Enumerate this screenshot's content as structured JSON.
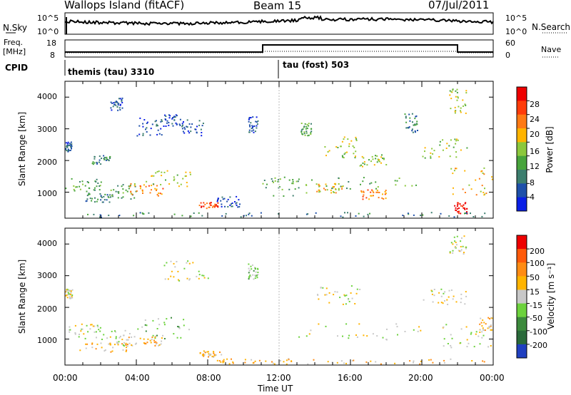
{
  "header": {
    "station": "Wallops Island (fitACF)",
    "beam": "Beam 15",
    "date": "07/Jul/2011"
  },
  "top_panels": {
    "nsky_label": "N.Sky",
    "nsky_ticks": [
      "10^5",
      "10^0"
    ],
    "nsearch_label": "N.Search",
    "nsearch_ticks": [
      "10^5",
      "10^0"
    ],
    "freq_label": "Freq.",
    "freq_unit": "[MHz]",
    "freq_ticks": [
      "18",
      "8"
    ],
    "nave_label": "Nave",
    "nave_ticks": [
      "60",
      "0"
    ],
    "cpid_label": "CPID",
    "cpid_entries": [
      {
        "label": "themis (tau) 3310",
        "start_hour": 0
      },
      {
        "label": "tau (fost) 503",
        "start_hour": 12
      }
    ]
  },
  "chart_data": [
    {
      "type": "heatmap",
      "title": "",
      "quantity": "Power",
      "xlabel": "Time UT",
      "ylabel": "Slant Range [km]",
      "xlim": [
        0,
        24
      ],
      "ylim": [
        180,
        4500
      ],
      "x_ticks": [
        "00:00",
        "04:00",
        "08:00",
        "12:00",
        "16:00",
        "20:00",
        "00:00"
      ],
      "y_ticks": [
        1000,
        2000,
        3000,
        4000
      ],
      "colorbar": {
        "label": "Power [dB]",
        "ticks": [
          "4",
          "8",
          "12",
          "16",
          "20",
          "24",
          "28"
        ],
        "colors": [
          "#0a1fe6",
          "#1e50aa",
          "#3c7e6e",
          "#48a43c",
          "#8cc83c",
          "#ffb400",
          "#ff7a14",
          "#ff3c0a",
          "#ee0000"
        ]
      },
      "regions": [
        {
          "t0": 0.0,
          "t1": 2.0,
          "r0": 1000,
          "r1": 1500,
          "level": 3
        },
        {
          "t0": 0.0,
          "t1": 0.4,
          "r0": 2300,
          "r1": 2600,
          "level": 1
        },
        {
          "t0": 0.8,
          "t1": 2.5,
          "r0": 700,
          "r1": 1000,
          "level": 2
        },
        {
          "t0": 1.5,
          "t1": 2.5,
          "r0": 1900,
          "r1": 2200,
          "level": 2
        },
        {
          "t0": 2.5,
          "t1": 4.0,
          "r0": 800,
          "r1": 1300,
          "level": 3
        },
        {
          "t0": 3.6,
          "t1": 5.5,
          "r0": 900,
          "r1": 1300,
          "level": 6
        },
        {
          "t0": 4.5,
          "t1": 7.0,
          "r0": 1200,
          "r1": 1700,
          "level": 4
        },
        {
          "t0": 4.0,
          "t1": 5.5,
          "r0": 2800,
          "r1": 3400,
          "level": 1
        },
        {
          "t0": 5.5,
          "t1": 6.5,
          "r0": 3100,
          "r1": 3500,
          "level": 1
        },
        {
          "t0": 6.5,
          "t1": 7.8,
          "r0": 2800,
          "r1": 3300,
          "level": 1
        },
        {
          "t0": 2.5,
          "t1": 3.2,
          "r0": 3600,
          "r1": 4000,
          "level": 1
        },
        {
          "t0": 7.5,
          "t1": 8.6,
          "r0": 500,
          "r1": 700,
          "level": 7
        },
        {
          "t0": 1.0,
          "t1": 12.5,
          "r0": 220,
          "r1": 380,
          "level": 2
        },
        {
          "t0": 8.5,
          "t1": 9.8,
          "r0": 550,
          "r1": 900,
          "level": 1
        },
        {
          "t0": 10.2,
          "t1": 10.8,
          "r0": 2900,
          "r1": 3400,
          "level": 1
        },
        {
          "t0": 11.0,
          "t1": 13.5,
          "r0": 900,
          "r1": 1500,
          "level": 3
        },
        {
          "t0": 12.5,
          "t1": 20.0,
          "r0": 1100,
          "r1": 1500,
          "level": 3
        },
        {
          "t0": 14.0,
          "t1": 15.5,
          "r0": 1000,
          "r1": 1300,
          "level": 5
        },
        {
          "t0": 16.5,
          "t1": 18.0,
          "r0": 800,
          "r1": 1100,
          "level": 6
        },
        {
          "t0": 13.2,
          "t1": 13.8,
          "r0": 2800,
          "r1": 3200,
          "level": 3
        },
        {
          "t0": 14.5,
          "t1": 16.5,
          "r0": 2100,
          "r1": 2800,
          "level": 4
        },
        {
          "t0": 16.5,
          "t1": 18.0,
          "r0": 1800,
          "r1": 2200,
          "level": 4
        },
        {
          "t0": 19.0,
          "t1": 19.8,
          "r0": 2900,
          "r1": 3500,
          "level": 2
        },
        {
          "t0": 20.0,
          "t1": 22.5,
          "r0": 2100,
          "r1": 2700,
          "level": 4
        },
        {
          "t0": 21.5,
          "t1": 22.5,
          "r0": 3500,
          "r1": 4300,
          "level": 4
        },
        {
          "t0": 21.5,
          "t1": 24.0,
          "r0": 900,
          "r1": 1800,
          "level": 5
        },
        {
          "t0": 21.8,
          "t1": 22.5,
          "r0": 300,
          "r1": 700,
          "level": 8
        },
        {
          "t0": 12.5,
          "t1": 24.0,
          "r0": 220,
          "r1": 380,
          "level": 2
        }
      ]
    },
    {
      "type": "heatmap",
      "title": "",
      "quantity": "Velocity",
      "xlabel": "Time UT",
      "ylabel": "Slant Range [km]",
      "xlim": [
        0,
        24
      ],
      "ylim": [
        180,
        4500
      ],
      "x_ticks": [
        "00:00",
        "04:00",
        "08:00",
        "12:00",
        "16:00",
        "20:00",
        "00:00"
      ],
      "y_ticks": [
        1000,
        2000,
        3000,
        4000
      ],
      "colorbar": {
        "label": "Velocity [m s⁻¹]",
        "ticks": [
          "200",
          "100",
          "50",
          "15",
          "-15",
          "-50",
          "-100",
          "-200"
        ],
        "colors": [
          "#2040c0",
          "#2a6a3a",
          "#3c8a3c",
          "#6cd23c",
          "#c8c8c8",
          "#ffb400",
          "#ff8c14",
          "#ff5a0a",
          "#ee0000"
        ]
      },
      "regions": [
        {
          "t0": 0.0,
          "t1": 2.0,
          "r0": 1000,
          "r1": 1500,
          "level": 4
        },
        {
          "t0": 0.0,
          "t1": 0.4,
          "r0": 2300,
          "r1": 2600,
          "level": 4
        },
        {
          "t0": 0.8,
          "t1": 3.5,
          "r0": 600,
          "r1": 900,
          "level": 5
        },
        {
          "t0": 2.0,
          "t1": 4.0,
          "r0": 800,
          "r1": 1300,
          "level": 4
        },
        {
          "t0": 4.0,
          "t1": 7.0,
          "r0": 1000,
          "r1": 1700,
          "level": 3
        },
        {
          "t0": 3.5,
          "t1": 5.5,
          "r0": 800,
          "r1": 1100,
          "level": 5
        },
        {
          "t0": 5.5,
          "t1": 8.0,
          "r0": 2800,
          "r1": 3500,
          "level": 4
        },
        {
          "t0": 7.5,
          "t1": 8.8,
          "r0": 450,
          "r1": 650,
          "level": 5
        },
        {
          "t0": 8.5,
          "t1": 13.0,
          "r0": 220,
          "r1": 400,
          "level": 5
        },
        {
          "t0": 10.2,
          "t1": 10.8,
          "r0": 2900,
          "r1": 3400,
          "level": 3
        },
        {
          "t0": 12.5,
          "t1": 20.0,
          "r0": 1000,
          "r1": 1500,
          "level": 4
        },
        {
          "t0": 14.0,
          "t1": 16.5,
          "r0": 2100,
          "r1": 2700,
          "level": 4
        },
        {
          "t0": 20.0,
          "t1": 22.5,
          "r0": 2100,
          "r1": 2600,
          "level": 4
        },
        {
          "t0": 21.5,
          "t1": 22.5,
          "r0": 3700,
          "r1": 4300,
          "level": 4
        },
        {
          "t0": 21.0,
          "t1": 24.0,
          "r0": 700,
          "r1": 1500,
          "level": 4
        },
        {
          "t0": 23.2,
          "t1": 24.0,
          "r0": 1300,
          "r1": 1700,
          "level": 5
        },
        {
          "t0": 12.0,
          "t1": 24.0,
          "r0": 220,
          "r1": 400,
          "level": 5
        }
      ]
    }
  ]
}
